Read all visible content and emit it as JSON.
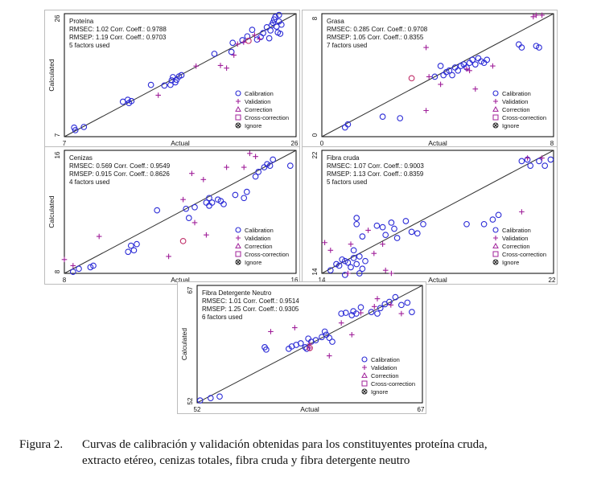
{
  "figure_caption": {
    "number": "Figura 2.",
    "line1": "Curvas de calibración y validación obtenidas para los constituyentes proteína cruda,",
    "line2": "extracto etéreo, cenizas totales, fibra cruda y fibra detergente neutro"
  },
  "legend_labels": [
    "Calibration",
    "Validation",
    "Correction",
    "Cross-correction",
    "Ignore"
  ],
  "colors": {
    "calibration": "#2b2bd6",
    "validation": "#a0209a",
    "correction": "#c0306a",
    "fit_line": "#333333",
    "frame": "#000000"
  },
  "chart_data": [
    {
      "type": "scatter",
      "title": "Proteína",
      "stats": [
        "RMSEC: 1.02   Corr. Coeff.: 0.9788",
        "RMSEP: 1.19   Corr. Coeff.: 0.9703",
        "5 factors used"
      ],
      "xlabel": "Actual",
      "ylabel": "Calculated",
      "xlim": [
        7,
        26
      ],
      "ylim": [
        7,
        26
      ],
      "x_ticks": [
        "7",
        "26"
      ],
      "y_ticks": [
        "7",
        "26"
      ],
      "calibration": [
        [
          7.8,
          8.4
        ],
        [
          7.9,
          8.0
        ],
        [
          8.6,
          8.5
        ],
        [
          11.8,
          12.4
        ],
        [
          12.2,
          12.7
        ],
        [
          12.5,
          12.5
        ],
        [
          12.3,
          12.2
        ],
        [
          14.1,
          15.0
        ],
        [
          15.2,
          14.9
        ],
        [
          15.8,
          15.7
        ],
        [
          15.7,
          15.0
        ],
        [
          16.2,
          15.8
        ],
        [
          16.4,
          16.3
        ],
        [
          16.6,
          16.5
        ],
        [
          15.9,
          16.2
        ],
        [
          16.1,
          15.4
        ],
        [
          19.3,
          19.8
        ],
        [
          20.7,
          20.1
        ],
        [
          20.8,
          21.5
        ],
        [
          21.6,
          21.9
        ],
        [
          22.0,
          22.5
        ],
        [
          22.8,
          22.0
        ],
        [
          23.1,
          22.4
        ],
        [
          23.3,
          23.0
        ],
        [
          23.6,
          23.9
        ],
        [
          23.9,
          23.4
        ],
        [
          24.0,
          24.2
        ],
        [
          24.1,
          24.6
        ],
        [
          24.2,
          25.1
        ],
        [
          24.3,
          25.5
        ],
        [
          24.4,
          24.0
        ],
        [
          24.5,
          23.1
        ],
        [
          24.6,
          24.8
        ],
        [
          24.6,
          25.8
        ],
        [
          24.7,
          22.9
        ],
        [
          24.8,
          24.3
        ],
        [
          22.4,
          23.5
        ],
        [
          23.8,
          22.2
        ]
      ],
      "validation": [
        [
          14.7,
          13.4
        ],
        [
          17.8,
          17.9
        ],
        [
          19.8,
          18.0
        ],
        [
          21.2,
          21.3
        ],
        [
          22.6,
          22.7
        ],
        [
          20.3,
          17.6
        ],
        [
          21.7,
          21.6
        ],
        [
          20.9,
          19.6
        ],
        [
          23.0,
          22.1
        ]
      ],
      "correction": [
        [
          22.1,
          21.8
        ]
      ],
      "fit": [
        [
          7,
          7
        ],
        [
          26,
          26
        ]
      ]
    },
    {
      "type": "scatter",
      "title": "Grasa",
      "stats": [
        "RMSEC: 0.285   Corr. Coeff.: 0.9708",
        "RMSEP: 1.05   Corr. Coeff.: 0.8355",
        "7 factors used"
      ],
      "xlabel": "Actual",
      "ylabel": "",
      "xlim": [
        0,
        8
      ],
      "ylim": [
        0,
        8
      ],
      "x_ticks": [
        "0",
        "8"
      ],
      "y_ticks": [
        "0",
        "8"
      ],
      "calibration": [
        [
          0.8,
          0.6
        ],
        [
          0.9,
          0.8
        ],
        [
          2.1,
          1.3
        ],
        [
          2.7,
          1.2
        ],
        [
          3.9,
          3.9
        ],
        [
          4.1,
          4.6
        ],
        [
          4.2,
          4.0
        ],
        [
          4.3,
          4.2
        ],
        [
          4.4,
          4.3
        ],
        [
          4.5,
          4.0
        ],
        [
          4.6,
          4.5
        ],
        [
          4.7,
          4.3
        ],
        [
          4.8,
          4.6
        ],
        [
          4.9,
          4.7
        ],
        [
          5.0,
          4.5
        ],
        [
          5.1,
          4.8
        ],
        [
          5.2,
          5.0
        ],
        [
          5.3,
          4.7
        ],
        [
          5.4,
          5.1
        ],
        [
          5.5,
          4.9
        ],
        [
          5.6,
          4.8
        ],
        [
          5.7,
          5.0
        ],
        [
          6.8,
          6.0
        ],
        [
          6.9,
          5.8
        ],
        [
          7.4,
          5.9
        ],
        [
          7.5,
          5.8
        ]
      ],
      "validation": [
        [
          3.6,
          5.8
        ],
        [
          3.6,
          1.7
        ],
        [
          4.1,
          3.4
        ],
        [
          5.3,
          3.1
        ],
        [
          3.7,
          3.9
        ],
        [
          7.4,
          7.9
        ],
        [
          5.0,
          4.4
        ],
        [
          5.1,
          4.3
        ],
        [
          5.9,
          4.6
        ],
        [
          7.6,
          7.9
        ],
        [
          7.3,
          7.8
        ]
      ],
      "correction": [
        [
          3.1,
          3.8
        ]
      ],
      "fit": [
        [
          0,
          0
        ],
        [
          8,
          8
        ]
      ]
    },
    {
      "type": "scatter",
      "title": "Cenizas",
      "stats": [
        "RMSEC: 0.569   Corr. Coeff.: 0.9549",
        "RMSEP: 0.915   Corr. Coeff.: 0.8626",
        "4 factors used"
      ],
      "xlabel": "Actual",
      "ylabel": "Calculated",
      "xlim": [
        8,
        16
      ],
      "ylim": [
        8,
        16
      ],
      "x_ticks": [
        "8",
        "16"
      ],
      "y_ticks": [
        "8",
        "16"
      ],
      "calibration": [
        [
          8.3,
          8.1
        ],
        [
          8.5,
          8.3
        ],
        [
          8.9,
          8.4
        ],
        [
          9.0,
          8.5
        ],
        [
          10.2,
          9.4
        ],
        [
          10.3,
          9.8
        ],
        [
          10.5,
          9.9
        ],
        [
          10.4,
          9.5
        ],
        [
          11.2,
          12.1
        ],
        [
          12.2,
          12.2
        ],
        [
          12.3,
          11.6
        ],
        [
          12.5,
          12.3
        ],
        [
          12.9,
          12.6
        ],
        [
          13.0,
          12.4
        ],
        [
          13.0,
          12.9
        ],
        [
          13.1,
          12.6
        ],
        [
          13.3,
          12.8
        ],
        [
          13.4,
          12.7
        ],
        [
          13.5,
          12.5
        ],
        [
          13.9,
          13.1
        ],
        [
          14.6,
          14.3
        ],
        [
          14.7,
          14.6
        ],
        [
          14.9,
          14.9
        ],
        [
          15.0,
          15.1
        ],
        [
          15.1,
          15.0
        ],
        [
          15.2,
          15.4
        ],
        [
          15.8,
          15.0
        ],
        [
          14.3,
          13.3
        ],
        [
          14.2,
          12.9
        ]
      ],
      "validation": [
        [
          8.0,
          8.9
        ],
        [
          8.3,
          8.5
        ],
        [
          9.2,
          10.4
        ],
        [
          11.6,
          9.1
        ],
        [
          12.1,
          12.8
        ],
        [
          12.4,
          14.5
        ],
        [
          12.8,
          14.1
        ],
        [
          13.6,
          14.9
        ],
        [
          14.4,
          15.8
        ],
        [
          14.2,
          14.9
        ],
        [
          14.6,
          15.6
        ],
        [
          12.9,
          10.5
        ],
        [
          12.5,
          11.3
        ]
      ],
      "correction": [
        [
          12.1,
          10.1
        ]
      ],
      "fit": [
        [
          8,
          8
        ],
        [
          16,
          16
        ]
      ]
    },
    {
      "type": "scatter",
      "title": "Fibra cruda",
      "stats": [
        "RMSEC: 1.07   Corr. Coeff.: 0.9003",
        "RMSEP: 1.13   Corr. Coeff.: 0.8359",
        "5 factors used"
      ],
      "xlabel": "Actual",
      "ylabel": "",
      "xlim": [
        14,
        22
      ],
      "ylim": [
        14,
        22
      ],
      "x_ticks": [
        "14",
        "22"
      ],
      "y_ticks": [
        "14",
        "22"
      ],
      "calibration": [
        [
          14.3,
          14.2
        ],
        [
          14.5,
          14.6
        ],
        [
          14.6,
          14.5
        ],
        [
          14.7,
          14.9
        ],
        [
          14.8,
          14.8
        ],
        [
          14.9,
          14.7
        ],
        [
          15.0,
          14.4
        ],
        [
          15.1,
          15.0
        ],
        [
          15.2,
          14.6
        ],
        [
          15.3,
          15.1
        ],
        [
          15.4,
          14.3
        ],
        [
          15.5,
          14.8
        ],
        [
          15.1,
          15.5
        ],
        [
          15.4,
          16.4
        ],
        [
          15.9,
          17.1
        ],
        [
          16.1,
          17.0
        ],
        [
          16.2,
          16.5
        ],
        [
          16.4,
          17.3
        ],
        [
          16.5,
          16.9
        ],
        [
          16.6,
          16.3
        ],
        [
          16.9,
          17.4
        ],
        [
          17.1,
          16.7
        ],
        [
          17.3,
          16.6
        ],
        [
          17.5,
          17.2
        ],
        [
          15.2,
          17.2
        ],
        [
          15.2,
          17.6
        ],
        [
          19.0,
          17.2
        ],
        [
          19.6,
          17.2
        ],
        [
          19.9,
          17.5
        ],
        [
          20.1,
          17.8
        ],
        [
          20.9,
          21.3
        ],
        [
          21.1,
          21.4
        ],
        [
          21.2,
          21.0
        ],
        [
          21.5,
          21.3
        ],
        [
          21.7,
          21.0
        ],
        [
          21.9,
          21.4
        ],
        [
          15.3,
          14.0
        ],
        [
          14.8,
          13.9
        ]
      ],
      "validation": [
        [
          14.1,
          16.0
        ],
        [
          14.3,
          15.5
        ],
        [
          15.0,
          15.9
        ],
        [
          15.6,
          16.8
        ],
        [
          16.1,
          15.9
        ],
        [
          16.4,
          14.0
        ],
        [
          20.9,
          18.0
        ],
        [
          21.1,
          21.5
        ],
        [
          21.6,
          21.5
        ],
        [
          15.8,
          15.3
        ],
        [
          14.9,
          14.0
        ],
        [
          16.2,
          14.2
        ]
      ],
      "correction": [],
      "fit": [
        [
          14,
          14
        ],
        [
          22,
          22
        ]
      ]
    },
    {
      "type": "scatter",
      "title": "Fibra Detergente Neutro",
      "stats": [
        "RMSEC: 1.01   Corr. Coeff.: 0.9514",
        "RMSEP: 1.25   Corr. Coeff.: 0.9305",
        "6 factors used"
      ],
      "xlabel": "Actual",
      "ylabel": "Calculated",
      "xlim": [
        52,
        67
      ],
      "ylim": [
        52,
        67
      ],
      "x_ticks": [
        "52",
        "67"
      ],
      "y_ticks": [
        "52",
        "67"
      ],
      "calibration": [
        [
          52.2,
          52.3
        ],
        [
          52.9,
          52.6
        ],
        [
          53.5,
          52.8
        ],
        [
          56.5,
          59.1
        ],
        [
          56.6,
          58.8
        ],
        [
          58.1,
          58.9
        ],
        [
          58.3,
          59.2
        ],
        [
          58.6,
          59.4
        ],
        [
          58.9,
          59.6
        ],
        [
          59.2,
          59.1
        ],
        [
          59.4,
          60.2
        ],
        [
          59.6,
          59.8
        ],
        [
          59.9,
          60.0
        ],
        [
          60.3,
          60.4
        ],
        [
          60.5,
          61.1
        ],
        [
          60.8,
          60.3
        ],
        [
          61.6,
          63.4
        ],
        [
          61.9,
          63.5
        ],
        [
          62.3,
          63.2
        ],
        [
          62.4,
          63.7
        ],
        [
          62.6,
          63.4
        ],
        [
          62.9,
          64.2
        ],
        [
          63.6,
          63.6
        ],
        [
          64.0,
          63.4
        ],
        [
          64.2,
          64.1
        ],
        [
          64.5,
          64.6
        ],
        [
          64.8,
          64.9
        ],
        [
          65.2,
          65.5
        ],
        [
          65.6,
          64.5
        ],
        [
          66.0,
          64.8
        ],
        [
          66.3,
          63.6
        ],
        [
          60.6,
          60.7
        ],
        [
          61.0,
          59.8
        ],
        [
          59.3,
          58.9
        ]
      ],
      "validation": [
        [
          58.5,
          61.6
        ],
        [
          59.5,
          59.5
        ],
        [
          61.6,
          62.2
        ],
        [
          62.9,
          63.5
        ],
        [
          63.8,
          64.3
        ],
        [
          64.0,
          65.3
        ],
        [
          65.6,
          63.4
        ],
        [
          64.9,
          64.5
        ],
        [
          59.5,
          59.0
        ],
        [
          60.8,
          58.0
        ],
        [
          62.3,
          60.7
        ],
        [
          56.9,
          61.1
        ]
      ],
      "correction": [
        [
          59.5,
          59.0
        ]
      ],
      "fit": [
        [
          52,
          52
        ],
        [
          67,
          67
        ]
      ]
    }
  ]
}
